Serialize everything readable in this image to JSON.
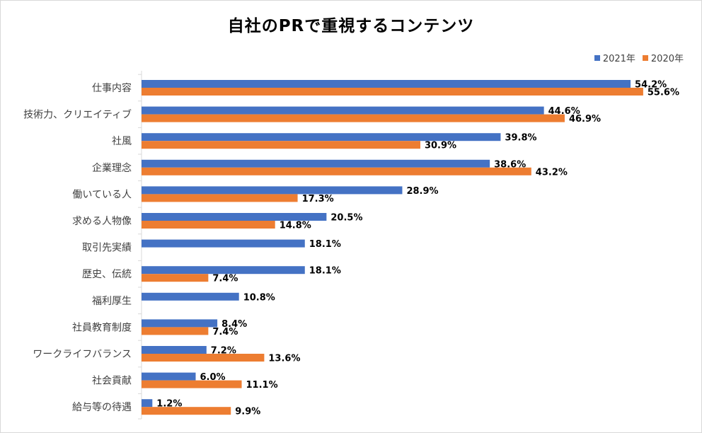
{
  "chart_data": {
    "type": "bar",
    "orientation": "horizontal",
    "title": "自社のPRで重視するコンテンツ",
    "categories": [
      "仕事内容",
      "技術力、クリエイティブ",
      "社風",
      "企業理念",
      "働いている人",
      "求める人物像",
      "取引先実績",
      "歴史、伝統",
      "福利厚生",
      "社員教育制度",
      "ワークライフバランス",
      "社会貢献",
      "給与等の待遇"
    ],
    "series": [
      {
        "name": "2021年",
        "color": "#4472c4",
        "values": [
          54.2,
          44.6,
          39.8,
          38.6,
          28.9,
          20.5,
          18.1,
          18.1,
          10.8,
          8.4,
          7.2,
          6.0,
          1.2
        ],
        "labels": [
          "54.2%",
          "44.6%",
          "39.8%",
          "38.6%",
          "28.9%",
          "20.5%",
          "18.1%",
          "18.1%",
          "10.8%",
          "8.4%",
          "7.2%",
          "6.0%",
          "1.2%"
        ]
      },
      {
        "name": "2020年",
        "color": "#ed7d31",
        "values": [
          55.6,
          46.9,
          30.9,
          43.2,
          17.3,
          14.8,
          null,
          7.4,
          null,
          7.4,
          13.6,
          11.1,
          9.9
        ],
        "labels": [
          "55.6%",
          "46.9%",
          "30.9%",
          "43.2%",
          "17.3%",
          "14.8%",
          "",
          "7.4%",
          "",
          "7.4%",
          "13.6%",
          "11.1%",
          "9.9%"
        ]
      }
    ],
    "xlim": [
      0,
      60
    ],
    "legend_position": "top-right",
    "grid": false
  }
}
